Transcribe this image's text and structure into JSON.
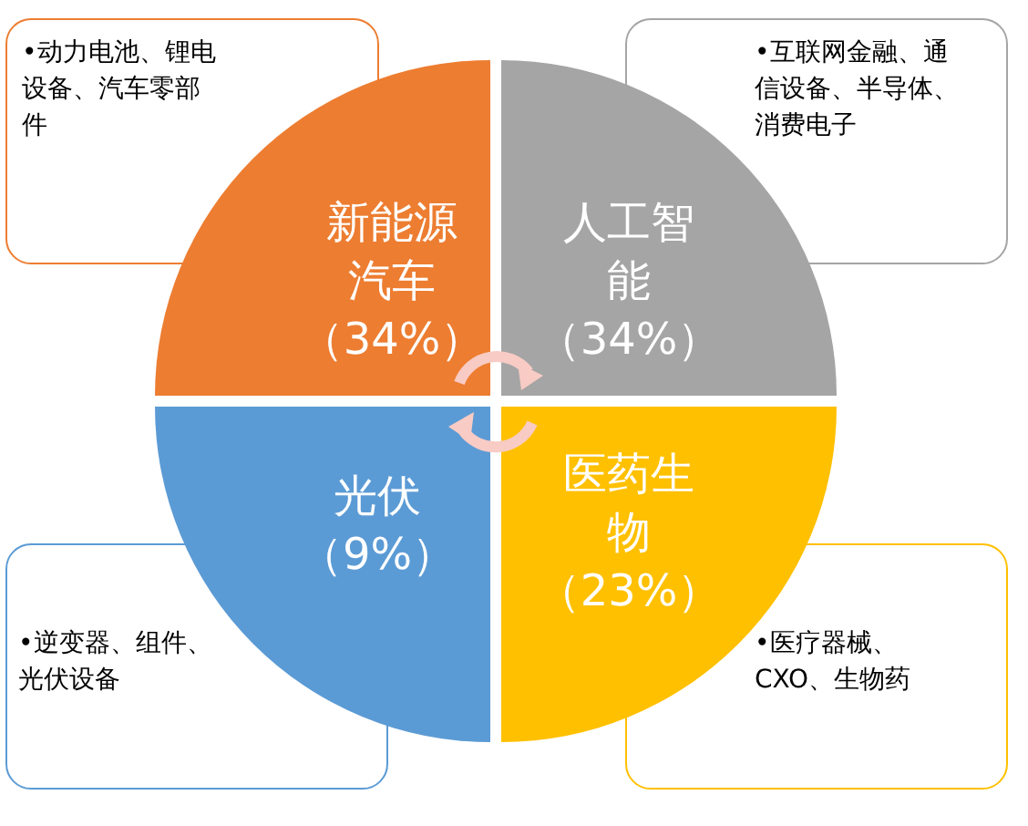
{
  "chart_data": {
    "type": "other",
    "categories": [
      "新能源汽车",
      "人工智能",
      "光伏",
      "医药生物"
    ],
    "values": [
      34,
      34,
      9,
      23
    ],
    "value_labels": [
      "（34%）",
      "（34%）",
      "（9%）",
      "（23%）"
    ],
    "colors": [
      "#ed7d31",
      "#a5a5a5",
      "#5b9bd5",
      "#ffc000"
    ],
    "annotations": [
      "•动力电池、锂电设备、汽车零部件",
      "•互联网金融、通信设备、半导体、消费电子",
      "•逆变器、组件、光伏设备",
      "•医疗器械、CXO、生物药"
    ]
  }
}
